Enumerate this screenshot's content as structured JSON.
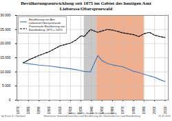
{
  "chart_data": {
    "type": "line",
    "title": "Bevölkerungsentwicklung seit 1875 im Gebiet des heutigen Amt\nLieberose/Oberspreewald",
    "x": [
      1875,
      1880,
      1890,
      1900,
      1910,
      1920,
      1925,
      1930,
      1933,
      1939,
      1946,
      1950,
      1955,
      1960,
      1964,
      1970,
      1975,
      1980,
      1985,
      1990,
      1995,
      2000,
      2005,
      2010
    ],
    "series": [
      {
        "name": "Bevölkerung von Amt\nLieberose/Oberspreewald",
        "color": "#4a7ab5",
        "line_style": "solid",
        "values": [
          13200,
          12900,
          12400,
          12100,
          11600,
          11100,
          10800,
          10400,
          10200,
          10000,
          15800,
          14000,
          13000,
          12500,
          12200,
          11800,
          11000,
          10200,
          9800,
          9200,
          8600,
          8100,
          7300,
          6600
        ]
      },
      {
        "name": "Prozentuale Bevölkerung von\nBrandenburg, 1875 = 100%",
        "color": "#000000",
        "line_style": "dashed",
        "values": [
          13200,
          14200,
          15800,
          17200,
          19200,
          20200,
          21200,
          22800,
          22500,
          25000,
          24000,
          24500,
          25000,
          24800,
          24400,
          23800,
          23500,
          23200,
          22500,
          23500,
          24000,
          23000,
          22500,
          22200
        ]
      }
    ],
    "shaded_periods": [
      {
        "start": 1933,
        "end": 1945,
        "color": "#c8c8c8"
      },
      {
        "start": 1945,
        "end": 1990,
        "color": "#f0b090"
      }
    ],
    "xlim": [
      1869,
      2013
    ],
    "xticks": [
      1870,
      1880,
      1890,
      1900,
      1910,
      1920,
      1930,
      1940,
      1950,
      1960,
      1970,
      1980,
      1990,
      2000,
      2010
    ],
    "ylim": [
      0,
      30000
    ],
    "yticks": [
      0,
      {
        "value": 5000,
        "label": "5.000"
      },
      {
        "value": 10000,
        "label": "10.000"
      },
      {
        "value": 15000,
        "label": "15.000"
      },
      {
        "value": 20000,
        "label": "20.000"
      },
      {
        "value": 25000,
        "label": "25.000"
      },
      {
        "value": 30000,
        "label": "30.000"
      }
    ],
    "grid": true,
    "legend": "upper left",
    "annotations": [
      "by Franz G. Olterbeck",
      "Quellen: Amt für Statistik Berlin-Brandenburg\nHistorische Gemeindestatistiken und Bevölkerung der Gemeinden im Land Brandenburg",
      "01.11.2010"
    ]
  }
}
